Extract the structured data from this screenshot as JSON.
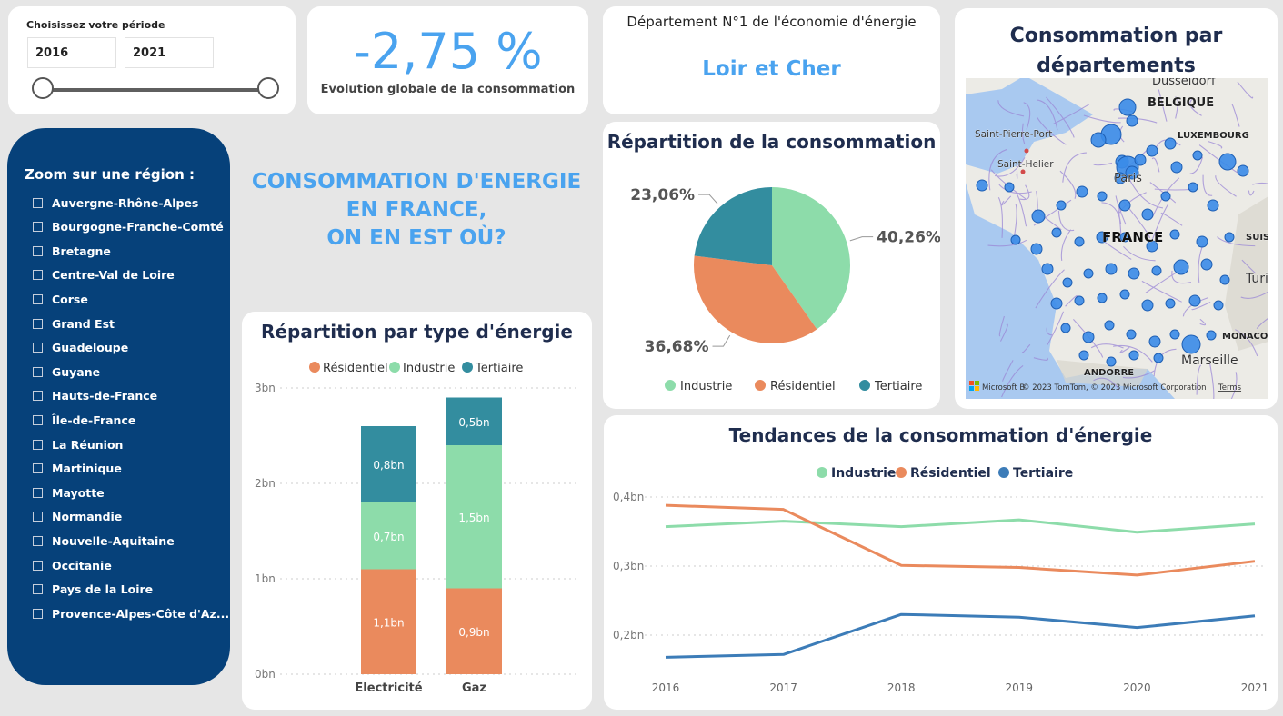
{
  "period": {
    "title": "Choisissez votre période",
    "start": "2016",
    "end": "2021"
  },
  "kpi": {
    "value": "-2,75 %",
    "label": "Evolution globale de la consommation"
  },
  "top_department": {
    "title": "Département N°1 de l'économie d'énergie",
    "value": "Loir et Cher"
  },
  "regions": {
    "title": "Zoom sur une région :",
    "items": [
      "Auvergne-Rhône-Alpes",
      "Bourgogne-Franche-Comté",
      "Bretagne",
      "Centre-Val de Loire",
      "Corse",
      "Grand Est",
      "Guadeloupe",
      "Guyane",
      "Hauts-de-France",
      "Île-de-France",
      "La Réunion",
      "Martinique",
      "Mayotte",
      "Normandie",
      "Nouvelle-Aquitaine",
      "Occitanie",
      "Pays de la Loire",
      "Provence-Alpes-Côte d'Az..."
    ]
  },
  "headline": {
    "line1": "CONSOMMATION D'ENERGIE",
    "line2": "EN FRANCE,",
    "line3": "ON EN EST OÙ?"
  },
  "map": {
    "title_line1": "Consommation par",
    "title_line2": "départements",
    "labels": {
      "dusseldorf": "Dusseldorf",
      "belgique": "BELGIQUE",
      "luxembourg": "LUXEMBOURG",
      "saint_pierre_port": "Saint-Pierre-Port",
      "saint_helier": "Saint-Helier",
      "paris": "Paris",
      "france": "FRANCE",
      "suisse": "SUISS",
      "turin": "Turin",
      "monaco": "MONACO",
      "marseille": "Marseille",
      "andorre": "ANDORRE"
    },
    "attribution": "© 2023 TomTom, © 2023 Microsoft Corporation",
    "terms": "Terms",
    "microsoft": "Microsoft B",
    "colors": {
      "water": "#a9c9f0",
      "land": "#ecebe6",
      "roads": "#9b88d6",
      "bubble": "#3a8be8"
    }
  },
  "colors": {
    "industrie": "#8ddcaa",
    "residentiel": "#ea8a5d",
    "tertiaire": "#338d9f",
    "trend_tertiaire": "#3c7cb8",
    "accent": "#4aa3ef",
    "navy": "#06417a"
  },
  "chart_data": [
    {
      "type": "pie",
      "title": "Répartition de la consommation",
      "labels": [
        "Industrie",
        "Résidentiel",
        "Tertiaire"
      ],
      "values": [
        40.26,
        36.68,
        23.06
      ],
      "data_labels": [
        "40,26%",
        "36,68%",
        "23,06%"
      ],
      "legend": "bottom"
    },
    {
      "type": "bar",
      "title": "Répartition par type d'énergie",
      "categories": [
        "Electricité",
        "Gaz"
      ],
      "series": [
        {
          "name": "Résidentiel",
          "values": [
            1.1,
            0.9
          ],
          "labels": [
            "1,1bn",
            "0,9bn"
          ]
        },
        {
          "name": "Industrie",
          "values": [
            0.7,
            1.5
          ],
          "labels": [
            "0,7bn",
            "1,5bn"
          ]
        },
        {
          "name": "Tertiaire",
          "values": [
            0.8,
            0.5
          ],
          "labels": [
            "0,8bn",
            "0,5bn"
          ]
        }
      ],
      "stacked": true,
      "ylim": [
        0,
        3
      ],
      "yticks": [
        0,
        1,
        2,
        3
      ],
      "ytick_labels": [
        "0bn",
        "1bn",
        "2bn",
        "3bn"
      ],
      "legend": "top"
    },
    {
      "type": "line",
      "title": "Tendances de la consommation d'énergie",
      "x": [
        "2016",
        "2017",
        "2018",
        "2019",
        "2020",
        "2021"
      ],
      "series": [
        {
          "name": "Industrie",
          "values": [
            0.357,
            0.365,
            0.357,
            0.367,
            0.349,
            0.361
          ]
        },
        {
          "name": "Résidentiel",
          "values": [
            0.388,
            0.382,
            0.301,
            0.298,
            0.287,
            0.307
          ]
        },
        {
          "name": "Tertiaire",
          "values": [
            0.168,
            0.172,
            0.23,
            0.226,
            0.211,
            0.228
          ]
        }
      ],
      "ylim": [
        0.15,
        0.4
      ],
      "yticks": [
        0.2,
        0.3,
        0.4
      ],
      "ytick_labels": [
        "0,2bn",
        "0,3bn",
        "0,4bn"
      ],
      "legend": "top"
    }
  ]
}
